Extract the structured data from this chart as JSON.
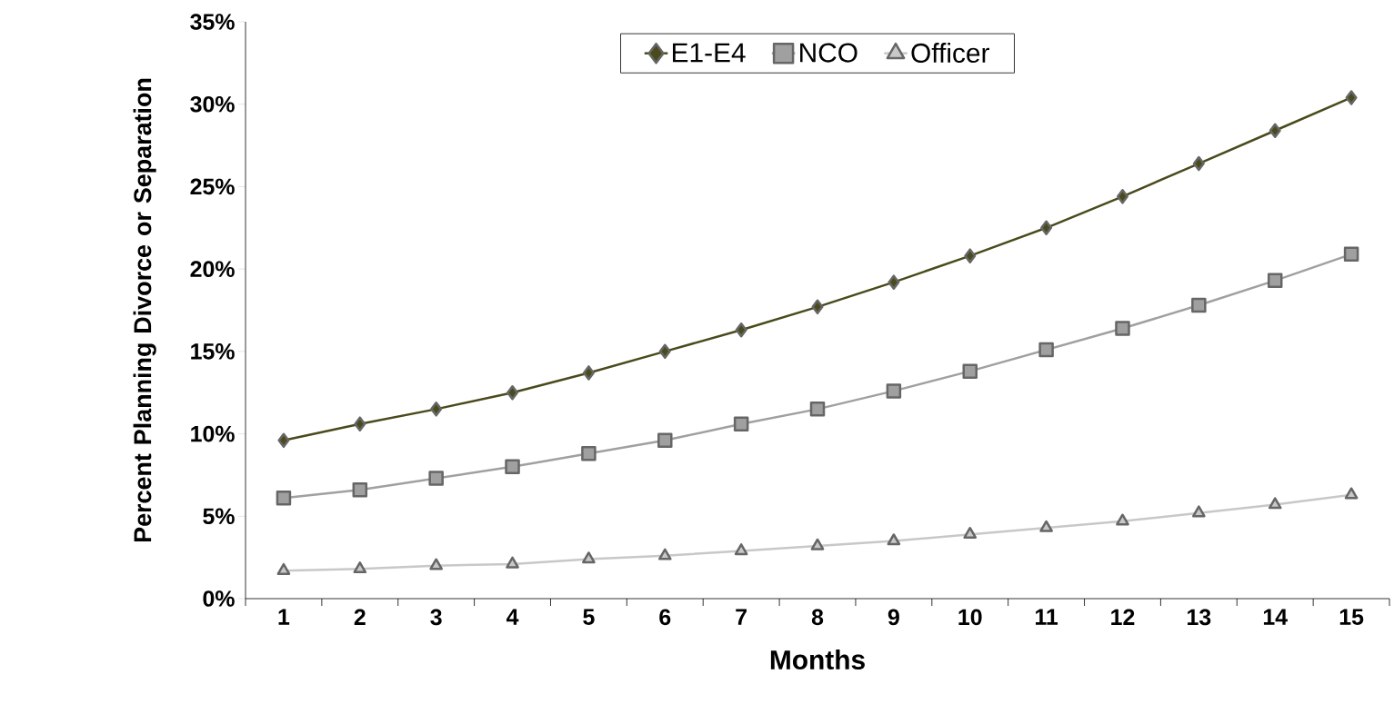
{
  "chart_data": {
    "type": "line",
    "xlabel": "Months",
    "ylabel": "Percent Planning Divorce or Separation",
    "categories": [
      "1",
      "2",
      "3",
      "4",
      "5",
      "6",
      "7",
      "8",
      "9",
      "10",
      "11",
      "12",
      "13",
      "14",
      "15"
    ],
    "series": [
      {
        "name": "E1-E4",
        "color": "#4a4a1c",
        "marker": "diamond",
        "values": [
          9.6,
          10.6,
          11.5,
          12.5,
          13.7,
          15.0,
          16.3,
          17.7,
          19.2,
          20.8,
          22.5,
          24.4,
          26.4,
          28.4,
          30.4
        ]
      },
      {
        "name": "NCO",
        "color": "#a0a0a0",
        "marker": "square",
        "values": [
          6.1,
          6.6,
          7.3,
          8.0,
          8.8,
          9.6,
          10.6,
          11.5,
          12.6,
          13.8,
          15.1,
          16.4,
          17.8,
          19.3,
          20.9
        ]
      },
      {
        "name": "Officer",
        "color": "#c8c8c8",
        "marker": "triangle",
        "values": [
          1.7,
          1.8,
          2.0,
          2.1,
          2.4,
          2.6,
          2.9,
          3.2,
          3.5,
          3.9,
          4.3,
          4.7,
          5.2,
          5.7,
          6.3
        ]
      }
    ],
    "ylim": [
      0,
      35
    ],
    "yticks": [
      {
        "value": 0,
        "label": "0%"
      },
      {
        "value": 5,
        "label": "5%"
      },
      {
        "value": 10,
        "label": "10%"
      },
      {
        "value": 15,
        "label": "15%"
      },
      {
        "value": 20,
        "label": "20%"
      },
      {
        "value": 25,
        "label": "25%"
      },
      {
        "value": 30,
        "label": "30%"
      },
      {
        "value": 35,
        "label": "35%"
      }
    ],
    "legend": "top",
    "grid": false,
    "line_style": "solid"
  }
}
